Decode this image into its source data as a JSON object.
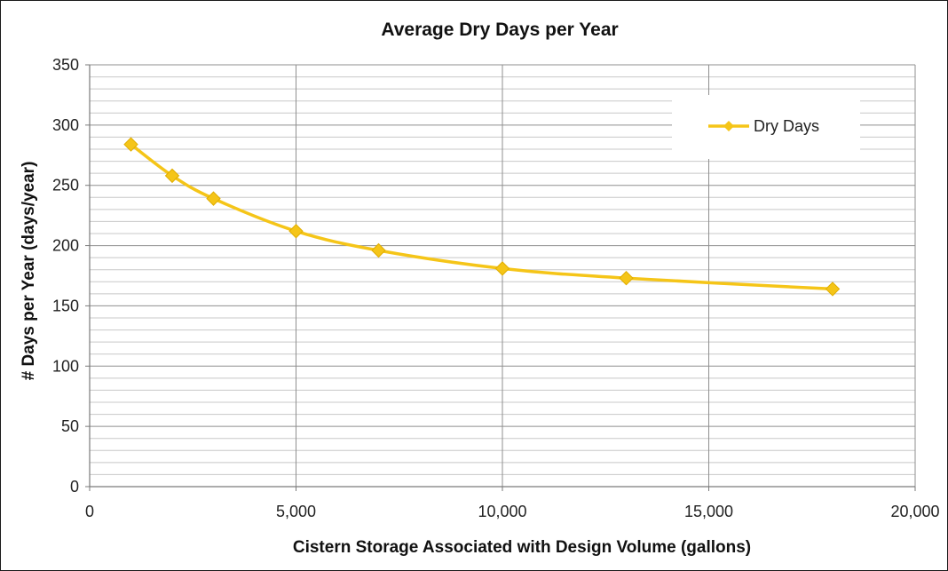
{
  "chart_data": {
    "type": "line",
    "title": "Average Dry Days per Year",
    "xlabel": "Cistern Storage Associated with Design Volume (gallons)",
    "ylabel": "# Days per Year (days/year)",
    "xlim": [
      0,
      20000
    ],
    "ylim": [
      0,
      350
    ],
    "x_ticks": [
      0,
      5000,
      10000,
      15000,
      20000
    ],
    "x_tick_labels": [
      "0",
      "5,000",
      "10,000",
      "15,000",
      "20,000"
    ],
    "y_ticks": [
      0,
      50,
      100,
      150,
      200,
      250,
      300,
      350
    ],
    "y_tick_labels": [
      "0",
      "50",
      "100",
      "150",
      "200",
      "250",
      "300",
      "350"
    ],
    "grid": true,
    "legend_position": "top-right",
    "series": [
      {
        "name": "Dry Days",
        "color": "#f5c518",
        "marker": "diamond",
        "x": [
          1000,
          2000,
          3000,
          5000,
          7000,
          10000,
          13000,
          18000
        ],
        "y": [
          284,
          258,
          239,
          212,
          196,
          181,
          173,
          164
        ]
      }
    ]
  }
}
